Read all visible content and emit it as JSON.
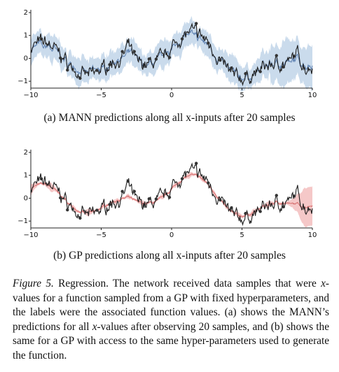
{
  "panels": [
    {
      "id": "a",
      "caption": "(a) MANN predictions along all x-inputs after 20 samples",
      "band_color": "#9fbedd",
      "band_opacity": 0.55,
      "mean_color": "#5b7fb0",
      "points_count": 20
    },
    {
      "id": "b",
      "caption": "(b) GP predictions along all x-inputs after 20 samples",
      "band_color": "#eea3a3",
      "band_opacity": 0.6,
      "mean_color": "#d56b6b",
      "points_count": 20
    }
  ],
  "chart_data": [
    {
      "type": "line",
      "title": "",
      "xlabel": "",
      "ylabel": "",
      "xlim": [
        -10,
        10
      ],
      "ylim": [
        -1.3,
        2
      ],
      "xticks": [
        "−10",
        "−5",
        "0",
        "5",
        "10"
      ],
      "yticks": [
        "−1",
        "0",
        "1",
        "2"
      ],
      "series": [
        {
          "role": "true-function",
          "color": "#222222"
        },
        {
          "role": "predictive-mean",
          "color": "#5b7fb0"
        },
        {
          "role": "uncertainty-band",
          "color": "#9fbedd"
        }
      ]
    },
    {
      "type": "line",
      "title": "",
      "xlabel": "",
      "ylabel": "",
      "xlim": [
        -10,
        10
      ],
      "ylim": [
        -1.3,
        2
      ],
      "xticks": [
        "−10",
        "−5",
        "0",
        "5",
        "10"
      ],
      "yticks": [
        "−1",
        "0",
        "1",
        "2"
      ],
      "series": [
        {
          "role": "true-function",
          "color": "#222222"
        },
        {
          "role": "predictive-mean",
          "color": "#d56b6b"
        },
        {
          "role": "uncertainty-band",
          "color": "#eea3a3"
        }
      ]
    }
  ],
  "figure_caption": {
    "label": "Figure 5.",
    "text_parts": [
      " Regression.  The network received data samples that were ",
      "x",
      "-values for a function sampled from a GP with fixed hyperparameters, and the labels were the associated function values. (a) shows the MANN’s predictions for all ",
      "x",
      "-values after observing 20 samples, and (b) shows the same for a GP with access to the same hyper-parameters used to generate the function."
    ]
  }
}
